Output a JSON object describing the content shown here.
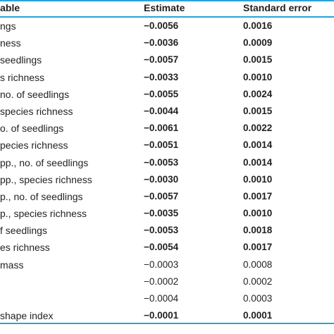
{
  "table": {
    "headers": {
      "variable": "ariable",
      "estimate": "Estimate",
      "std_error": "Standard error"
    },
    "rows": [
      {
        "variable": "ngs",
        "estimate": "−0.0056",
        "std_error": "0.0016",
        "bold": true
      },
      {
        "variable": "ness",
        "estimate": "−0.0036",
        "std_error": "0.0009",
        "bold": true
      },
      {
        "variable": "seedlings",
        "estimate": "−0.0057",
        "std_error": "0.0015",
        "bold": true
      },
      {
        "variable": "s richness",
        "estimate": "−0.0033",
        "std_error": "0.0010",
        "bold": true
      },
      {
        "variable": "no. of seedlings",
        "estimate": "−0.0055",
        "std_error": "0.0024",
        "bold": true
      },
      {
        "variable": "species richness",
        "estimate": "−0.0044",
        "std_error": "0.0015",
        "bold": true
      },
      {
        "variable": "o. of seedlings",
        "estimate": "−0.0061",
        "std_error": "0.0022",
        "bold": true
      },
      {
        "variable": "pecies richness",
        "estimate": "−0.0051",
        "std_error": "0.0014",
        "bold": true
      },
      {
        "variable": "pp., no. of seedlings",
        "estimate": "−0.0053",
        "std_error": "0.0014",
        "bold": true
      },
      {
        "variable": "pp., species richness",
        "estimate": "−0.0030",
        "std_error": "0.0010",
        "bold": true
      },
      {
        "variable": "p., no. of seedlings",
        "estimate": "−0.0057",
        "std_error": "0.0017",
        "bold": true
      },
      {
        "variable": "p., species richness",
        "estimate": "−0.0035",
        "std_error": "0.0010",
        "bold": true
      },
      {
        "variable": "f seedlings",
        "estimate": "−0.0053",
        "std_error": "0.0018",
        "bold": true
      },
      {
        "variable": "es richness",
        "estimate": "−0.0054",
        "std_error": "0.0017",
        "bold": true
      },
      {
        "variable": "mass",
        "estimate": "−0.0003",
        "std_error": "0.0008",
        "bold": false
      },
      {
        "variable": "",
        "estimate": "−0.0002",
        "std_error": "0.0002",
        "bold": false
      },
      {
        "variable": "",
        "estimate": "−0.0004",
        "std_error": "0.0003",
        "bold": false
      },
      {
        "variable": "shape index",
        "estimate": "−0.0001",
        "std_error": "0.0001",
        "bold": true
      }
    ],
    "rule_color": "#29a3d6"
  }
}
